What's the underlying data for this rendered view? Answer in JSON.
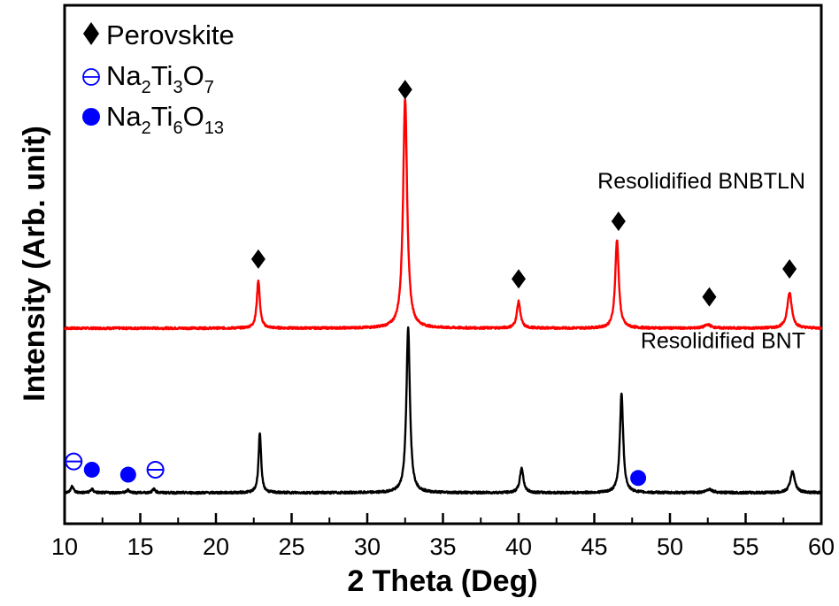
{
  "chart_data": {
    "type": "line",
    "title": "",
    "xlabel": "2 Theta (Deg)",
    "ylabel": "Intensity (Arb. unit)",
    "xlim": [
      10,
      60
    ],
    "x_ticks": [
      10,
      15,
      20,
      25,
      30,
      35,
      40,
      45,
      50,
      55,
      60
    ],
    "x_tick_labels": [
      "10",
      "15",
      "20",
      "25",
      "30",
      "35",
      "40",
      "45",
      "50",
      "55",
      "60"
    ],
    "x_minor_step": 2.5,
    "grid": false,
    "y_ticks_visible": false,
    "legend": {
      "placement": "top-left",
      "entries": [
        {
          "marker": "filled-diamond",
          "color": "#000000",
          "label_parts": [
            {
              "t": "Perovskite",
              "sub": false
            }
          ]
        },
        {
          "marker": "circle-with-bar",
          "color": "#0000ff",
          "label_parts": [
            {
              "t": "Na",
              "sub": false
            },
            {
              "t": "2",
              "sub": true
            },
            {
              "t": "Ti",
              "sub": false
            },
            {
              "t": "3",
              "sub": true
            },
            {
              "t": "O",
              "sub": false
            },
            {
              "t": "7",
              "sub": true
            }
          ]
        },
        {
          "marker": "filled-circle",
          "color": "#0000ff",
          "label_parts": [
            {
              "t": "Na",
              "sub": false
            },
            {
              "t": "2",
              "sub": true
            },
            {
              "t": "Ti",
              "sub": false
            },
            {
              "t": "6",
              "sub": true
            },
            {
              "t": "O",
              "sub": false
            },
            {
              "t": "13",
              "sub": true
            }
          ]
        }
      ]
    },
    "series": [
      {
        "name": "Resolidified BNBTLN",
        "color": "#ff0000",
        "offset": 1.0,
        "baseline": 0,
        "peaks": [
          {
            "x": 22.8,
            "height": 0.27,
            "width": 0.12
          },
          {
            "x": 32.5,
            "height": 1.3,
            "width": 0.16
          },
          {
            "x": 40.0,
            "height": 0.15,
            "width": 0.14
          },
          {
            "x": 46.5,
            "height": 0.5,
            "width": 0.14
          },
          {
            "x": 52.5,
            "height": 0.02,
            "width": 0.25
          },
          {
            "x": 57.9,
            "height": 0.2,
            "width": 0.18
          }
        ]
      },
      {
        "name": "Resolidified BNT",
        "color": "#000000",
        "offset": 0.0,
        "baseline": 0,
        "peaks": [
          {
            "x": 10.5,
            "height": 0.04,
            "width": 0.1
          },
          {
            "x": 11.8,
            "height": 0.02,
            "width": 0.12
          },
          {
            "x": 14.2,
            "height": 0.015,
            "width": 0.12
          },
          {
            "x": 15.9,
            "height": 0.02,
            "width": 0.12
          },
          {
            "x": 22.9,
            "height": 0.34,
            "width": 0.1
          },
          {
            "x": 32.7,
            "height": 0.93,
            "width": 0.14
          },
          {
            "x": 40.2,
            "height": 0.14,
            "width": 0.14
          },
          {
            "x": 46.8,
            "height": 0.56,
            "width": 0.13
          },
          {
            "x": 52.6,
            "height": 0.02,
            "width": 0.25
          },
          {
            "x": 58.1,
            "height": 0.12,
            "width": 0.18
          }
        ]
      }
    ],
    "annotations": [
      {
        "type": "text",
        "text": "Resolidified BNBTLN",
        "series": "Resolidified BNBTLN",
        "x": 58.0,
        "y_rel": 1.85
      },
      {
        "type": "text",
        "text": "Resolidified BNT",
        "series": "Resolidified BNT",
        "x": 58.0,
        "y_rel": 0.88
      },
      {
        "type": "marker",
        "marker": "filled-diamond",
        "color": "#000000",
        "phase": "Perovskite",
        "x": 22.8,
        "y_rel": 1.42
      },
      {
        "type": "marker",
        "marker": "filled-diamond",
        "color": "#000000",
        "phase": "Perovskite",
        "x": 32.5,
        "y_rel": 2.45
      },
      {
        "type": "marker",
        "marker": "filled-diamond",
        "color": "#000000",
        "phase": "Perovskite",
        "x": 40.0,
        "y_rel": 1.3
      },
      {
        "type": "marker",
        "marker": "filled-diamond",
        "color": "#000000",
        "phase": "Perovskite",
        "x": 46.6,
        "y_rel": 1.65
      },
      {
        "type": "marker",
        "marker": "filled-diamond",
        "color": "#000000",
        "phase": "Perovskite",
        "x": 52.6,
        "y_rel": 1.19
      },
      {
        "type": "marker",
        "marker": "filled-diamond",
        "color": "#000000",
        "phase": "Perovskite",
        "x": 57.9,
        "y_rel": 1.36
      },
      {
        "type": "marker",
        "marker": "circle-with-bar",
        "color": "#0000ff",
        "phase": "Na2Ti3O7",
        "x": 10.6,
        "y_rel": 0.19
      },
      {
        "type": "marker",
        "marker": "filled-circle",
        "color": "#0000ff",
        "phase": "Na2Ti6O13",
        "x": 11.8,
        "y_rel": 0.14
      },
      {
        "type": "marker",
        "marker": "filled-circle",
        "color": "#0000ff",
        "phase": "Na2Ti6O13",
        "x": 14.2,
        "y_rel": 0.11
      },
      {
        "type": "marker",
        "marker": "circle-with-bar",
        "color": "#0000ff",
        "phase": "Na2Ti3O7",
        "x": 16.0,
        "y_rel": 0.14
      },
      {
        "type": "marker",
        "marker": "filled-circle",
        "color": "#0000ff",
        "phase": "Na2Ti6O13",
        "x": 47.9,
        "y_rel": 0.09
      }
    ]
  }
}
